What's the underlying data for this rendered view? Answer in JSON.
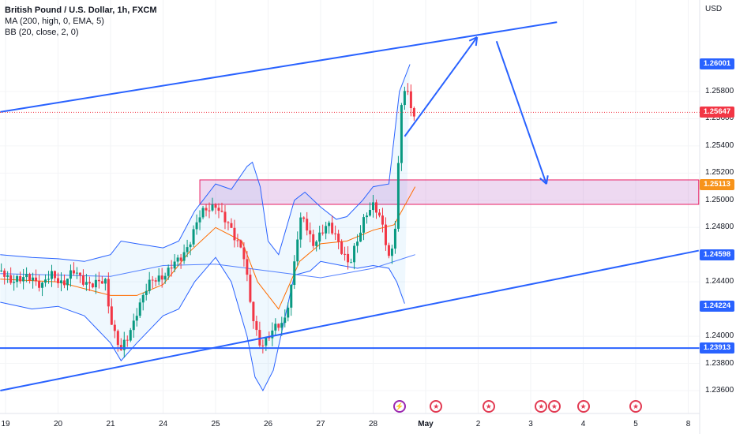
{
  "legend": {
    "title": "British Pound / U.S. Dollar, 1h, FXCM",
    "ma": "MA (200, high, 0, EMA, 5)",
    "bb": "BB (20, close, 2, 0)"
  },
  "currency": "USD",
  "price_labels": [
    {
      "value": "1.26001",
      "color": "#2962ff"
    },
    {
      "value": "1.25647",
      "color": "#f23645"
    },
    {
      "value": "1.25113",
      "color": "#f7931a"
    },
    {
      "value": "1.24598",
      "color": "#2962ff"
    },
    {
      "value": "1.24224",
      "color": "#2962ff"
    },
    {
      "value": "1.23913",
      "color": "#2962ff"
    }
  ],
  "events": [
    {
      "x": 7.5,
      "icon": "lightning-icon",
      "glyph": "⚡"
    },
    {
      "x": 8.2,
      "icon": "us-flag-icon",
      "glyph": "★"
    },
    {
      "x": 9.2,
      "icon": "us-flag-icon",
      "glyph": "★"
    },
    {
      "x": 10.2,
      "icon": "us-flag-icon",
      "glyph": "★"
    },
    {
      "x": 10.45,
      "icon": "us-flag-icon",
      "glyph": "★"
    },
    {
      "x": 11.0,
      "icon": "us-flag-icon",
      "glyph": "★"
    },
    {
      "x": 12.0,
      "icon": "us-flag-icon",
      "glyph": "★"
    }
  ],
  "chart_data": {
    "type": "candlestick",
    "x_ticks": [
      {
        "x": 0,
        "label": "19"
      },
      {
        "x": 1,
        "label": "20"
      },
      {
        "x": 2,
        "label": "21"
      },
      {
        "x": 3,
        "label": "24"
      },
      {
        "x": 4,
        "label": "25"
      },
      {
        "x": 5,
        "label": "26"
      },
      {
        "x": 6,
        "label": "27"
      },
      {
        "x": 7,
        "label": "28"
      },
      {
        "x": 8,
        "label": "May"
      },
      {
        "x": 9,
        "label": "2"
      },
      {
        "x": 10,
        "label": "3"
      },
      {
        "x": 11,
        "label": "4"
      },
      {
        "x": 12,
        "label": "5"
      },
      {
        "x": 13,
        "label": "8"
      }
    ],
    "y_ticks": [
      "1.25800",
      "1.25600",
      "1.25400",
      "1.25200",
      "1.25000",
      "1.24800",
      "1.24400",
      "1.24000",
      "1.23800",
      "1.23600"
    ],
    "ylim": [
      1.2345,
      1.2635
    ],
    "price_series": [
      [
        -0.1,
        1.2448
      ],
      [
        0.1,
        1.2443
      ],
      [
        0.3,
        1.244
      ],
      [
        0.5,
        1.2445
      ],
      [
        0.7,
        1.2437
      ],
      [
        0.9,
        1.2445
      ],
      [
        1.1,
        1.244
      ],
      [
        1.3,
        1.2446
      ],
      [
        1.5,
        1.2442
      ],
      [
        1.7,
        1.2437
      ],
      [
        1.9,
        1.244
      ],
      [
        2.0,
        1.2415
      ],
      [
        2.1,
        1.24
      ],
      [
        2.2,
        1.2388
      ],
      [
        2.35,
        1.24
      ],
      [
        2.5,
        1.242
      ],
      [
        2.65,
        1.2432
      ],
      [
        2.8,
        1.244
      ],
      [
        2.95,
        1.2445
      ],
      [
        3.1,
        1.2448
      ],
      [
        3.3,
        1.2455
      ],
      [
        3.5,
        1.247
      ],
      [
        3.7,
        1.2487
      ],
      [
        3.85,
        1.2495
      ],
      [
        4.0,
        1.2498
      ],
      [
        4.15,
        1.2485
      ],
      [
        4.3,
        1.2478
      ],
      [
        4.45,
        1.247
      ],
      [
        4.55,
        1.2458
      ],
      [
        4.65,
        1.2425
      ],
      [
        4.75,
        1.2405
      ],
      [
        4.85,
        1.2395
      ],
      [
        5.0,
        1.24
      ],
      [
        5.15,
        1.2405
      ],
      [
        5.3,
        1.241
      ],
      [
        5.45,
        1.244
      ],
      [
        5.55,
        1.247
      ],
      [
        5.65,
        1.2488
      ],
      [
        5.75,
        1.2478
      ],
      [
        5.85,
        1.247
      ],
      [
        6.0,
        1.2475
      ],
      [
        6.15,
        1.248
      ],
      [
        6.3,
        1.2475
      ],
      [
        6.45,
        1.246
      ],
      [
        6.55,
        1.245
      ],
      [
        6.7,
        1.247
      ],
      [
        6.85,
        1.2492
      ],
      [
        7.0,
        1.2495
      ],
      [
        7.1,
        1.2488
      ],
      [
        7.2,
        1.2478
      ],
      [
        7.3,
        1.246
      ],
      [
        7.4,
        1.247
      ],
      [
        7.45,
        1.25
      ],
      [
        7.5,
        1.254
      ],
      [
        7.55,
        1.2575
      ],
      [
        7.62,
        1.2582
      ],
      [
        7.7,
        1.2572
      ],
      [
        7.78,
        1.2565
      ]
    ],
    "ema200": [
      [
        -0.1,
        1.2446
      ],
      [
        1.0,
        1.2445
      ],
      [
        2.0,
        1.2444
      ],
      [
        3.0,
        1.2452
      ],
      [
        4.0,
        1.2453
      ],
      [
        5.0,
        1.2448
      ],
      [
        6.0,
        1.2443
      ],
      [
        7.0,
        1.245
      ],
      [
        7.8,
        1.246
      ]
    ],
    "bb_upper": [
      [
        -0.1,
        1.246
      ],
      [
        0.5,
        1.2458
      ],
      [
        1.0,
        1.2457
      ],
      [
        1.5,
        1.2455
      ],
      [
        2.0,
        1.246
      ],
      [
        2.2,
        1.247
      ],
      [
        2.5,
        1.2468
      ],
      [
        3.0,
        1.2465
      ],
      [
        3.3,
        1.247
      ],
      [
        3.6,
        1.2492
      ],
      [
        4.0,
        1.2512
      ],
      [
        4.3,
        1.2508
      ],
      [
        4.6,
        1.2525
      ],
      [
        4.7,
        1.2528
      ],
      [
        4.85,
        1.251
      ],
      [
        5.0,
        1.247
      ],
      [
        5.2,
        1.246
      ],
      [
        5.5,
        1.25
      ],
      [
        5.7,
        1.2506
      ],
      [
        6.0,
        1.2495
      ],
      [
        6.3,
        1.2486
      ],
      [
        6.5,
        1.2488
      ],
      [
        6.8,
        1.25
      ],
      [
        7.0,
        1.251
      ],
      [
        7.3,
        1.2512
      ],
      [
        7.5,
        1.258
      ],
      [
        7.7,
        1.26
      ]
    ],
    "bb_lower": [
      [
        -0.1,
        1.2425
      ],
      [
        0.5,
        1.242
      ],
      [
        1.0,
        1.2422
      ],
      [
        1.5,
        1.2415
      ],
      [
        2.0,
        1.2395
      ],
      [
        2.2,
        1.2382
      ],
      [
        2.5,
        1.2395
      ],
      [
        3.0,
        1.2415
      ],
      [
        3.3,
        1.242
      ],
      [
        3.6,
        1.244
      ],
      [
        4.0,
        1.2458
      ],
      [
        4.3,
        1.244
      ],
      [
        4.6,
        1.24
      ],
      [
        4.75,
        1.237
      ],
      [
        4.9,
        1.236
      ],
      [
        5.1,
        1.2375
      ],
      [
        5.3,
        1.241
      ],
      [
        5.5,
        1.2445
      ],
      [
        5.8,
        1.2448
      ],
      [
        6.0,
        1.2455
      ],
      [
        6.4,
        1.2452
      ],
      [
        6.7,
        1.245
      ],
      [
        7.0,
        1.2452
      ],
      [
        7.3,
        1.245
      ],
      [
        7.45,
        1.244
      ],
      [
        7.6,
        1.2424
      ]
    ],
    "bb_basis": [
      [
        -0.1,
        1.2442
      ],
      [
        1.0,
        1.244
      ],
      [
        2.0,
        1.243
      ],
      [
        2.5,
        1.243
      ],
      [
        3.0,
        1.2438
      ],
      [
        3.5,
        1.2462
      ],
      [
        4.0,
        1.248
      ],
      [
        4.5,
        1.247
      ],
      [
        4.8,
        1.244
      ],
      [
        5.2,
        1.242
      ],
      [
        5.6,
        1.2455
      ],
      [
        6.0,
        1.2468
      ],
      [
        6.5,
        1.247
      ],
      [
        7.0,
        1.2478
      ],
      [
        7.4,
        1.2482
      ],
      [
        7.8,
        1.251
      ]
    ],
    "resistance_zone": {
      "x0": 3.7,
      "x1": 13.2,
      "y0": 1.2497,
      "y1": 1.2515
    },
    "upper_trendline": [
      [
        -0.1,
        1.2565
      ],
      [
        10.5,
        1.2631
      ]
    ],
    "lower_trendline": [
      [
        -0.1,
        1.236
      ],
      [
        13.2,
        1.2463
      ]
    ],
    "horizontal_support": 1.23913,
    "last_price": 1.25647,
    "projection_arrows": [
      [
        [
          7.6,
          1.2547
        ],
        [
          8.98,
          1.262
        ]
      ],
      [
        [
          9.35,
          1.2617
        ],
        [
          10.3,
          1.2512
        ]
      ]
    ]
  }
}
